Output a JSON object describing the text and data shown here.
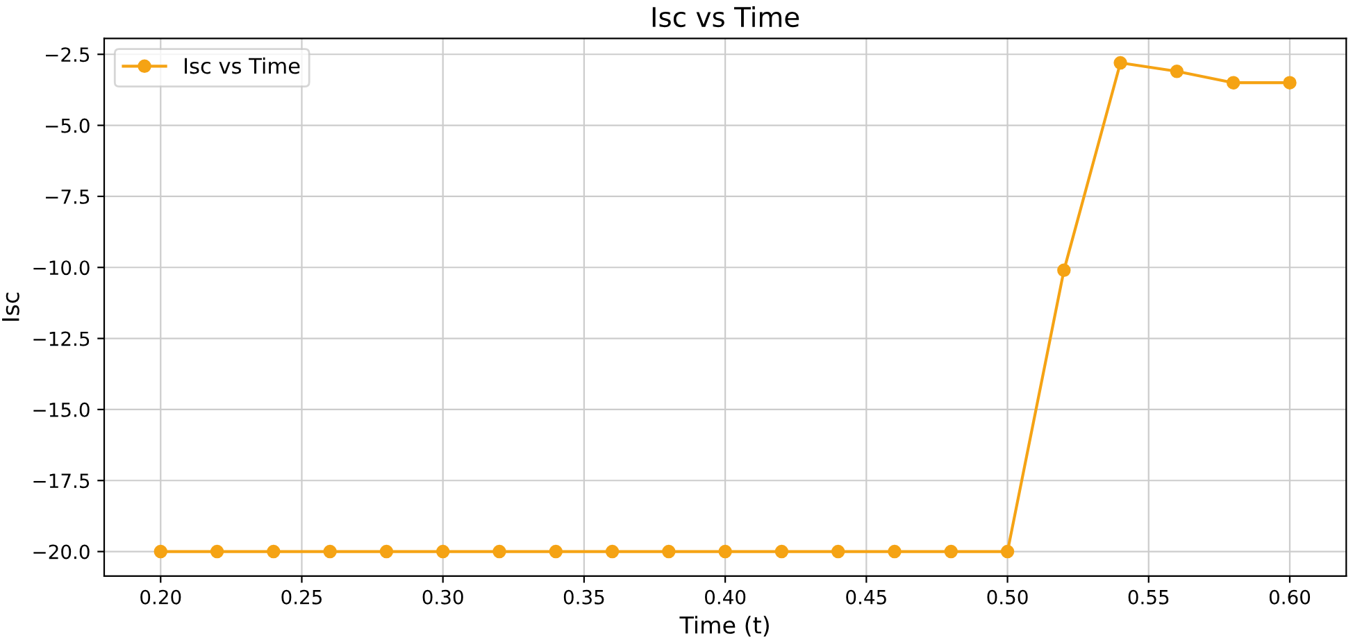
{
  "chart_data": {
    "type": "line",
    "title": "Isc vs Time",
    "xlabel": "Time (t)",
    "ylabel": "Isc",
    "x": [
      0.2,
      0.22,
      0.24,
      0.26,
      0.28,
      0.3,
      0.32,
      0.34,
      0.36,
      0.38,
      0.4,
      0.42,
      0.44,
      0.46,
      0.48,
      0.5,
      0.52,
      0.54,
      0.56,
      0.58,
      0.6
    ],
    "series": [
      {
        "name": "Isc vs Time",
        "color": "#f5a314",
        "values": [
          -20,
          -20,
          -20,
          -20,
          -20,
          -20,
          -20,
          -20,
          -20,
          -20,
          -20,
          -20,
          -20,
          -20,
          -20,
          -20,
          -10.1,
          -2.8,
          -3.1,
          -3.5,
          -3.5
        ]
      }
    ],
    "xlim": [
      0.18,
      0.62
    ],
    "ylim": [
      -20.86,
      -1.94
    ],
    "xticks": [
      {
        "value": 0.2,
        "label": "0.20"
      },
      {
        "value": 0.25,
        "label": "0.25"
      },
      {
        "value": 0.3,
        "label": "0.30"
      },
      {
        "value": 0.35,
        "label": "0.35"
      },
      {
        "value": 0.4,
        "label": "0.40"
      },
      {
        "value": 0.45,
        "label": "0.45"
      },
      {
        "value": 0.5,
        "label": "0.50"
      },
      {
        "value": 0.55,
        "label": "0.55"
      },
      {
        "value": 0.6,
        "label": "0.60"
      }
    ],
    "yticks": [
      {
        "value": -20,
        "label": "−20.0"
      },
      {
        "value": -17.5,
        "label": "−17.5"
      },
      {
        "value": -15,
        "label": "−15.0"
      },
      {
        "value": -12.5,
        "label": "−12.5"
      },
      {
        "value": -10,
        "label": "−10.0"
      },
      {
        "value": -7.5,
        "label": "−7.5"
      },
      {
        "value": -5,
        "label": "−5.0"
      },
      {
        "value": -2.5,
        "label": "−2.5"
      }
    ],
    "grid": true,
    "legend": "top left",
    "marker": "circle",
    "line_style": "solid"
  }
}
